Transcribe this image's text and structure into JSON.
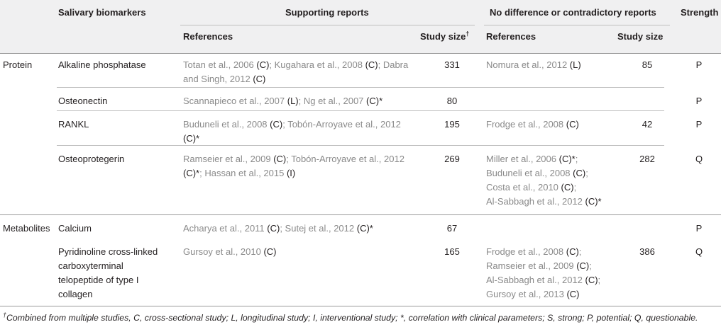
{
  "headers": {
    "biomarkers": "Salivary biomarkers",
    "supporting": "Supporting reports",
    "contradictory": "No difference or contradictory reports",
    "strength": "Strength",
    "references": "References",
    "study_size": "Study size",
    "dagger": "†"
  },
  "rows": [
    {
      "category": "Protein",
      "biomarker": [
        "Alkaline phosphatase"
      ],
      "support_refs": [
        [
          [
            "Totan et al., 2006 ",
            "r"
          ],
          [
            "(C)",
            "c"
          ],
          [
            "; Kugahara et al., 2008 ",
            "r"
          ],
          [
            "(C)",
            "c"
          ],
          [
            "; Dabra",
            "r"
          ]
        ],
        [
          [
            "and Singh, 2012 ",
            "r"
          ],
          [
            "(C)",
            "c"
          ]
        ]
      ],
      "support_size": "331",
      "contra_refs": [
        [
          [
            "Nomura et al., 2012 ",
            "r"
          ],
          [
            "(L)",
            "c"
          ]
        ]
      ],
      "contra_size": "85",
      "strength": "P"
    },
    {
      "category": "",
      "biomarker": [
        "Osteonectin"
      ],
      "support_refs": [
        [
          [
            "Scannapieco et al., 2007 ",
            "r"
          ],
          [
            "(L)",
            "c"
          ],
          [
            "; Ng et al., 2007 ",
            "r"
          ],
          [
            "(C)*",
            "c"
          ]
        ]
      ],
      "support_size": "80",
      "contra_refs": [],
      "contra_size": "",
      "strength": "P"
    },
    {
      "category": "",
      "biomarker": [
        "RANKL"
      ],
      "support_refs": [
        [
          [
            "Buduneli et al., 2008 ",
            "r"
          ],
          [
            "(C)",
            "c"
          ],
          [
            "; Tobón-Arroyave et al., 2012",
            "r"
          ]
        ],
        [
          [
            "(C)*",
            "c"
          ]
        ]
      ],
      "support_size": "195",
      "contra_refs": [
        [
          [
            "Frodge et al., 2008 ",
            "r"
          ],
          [
            "(C)",
            "c"
          ]
        ]
      ],
      "contra_size": "42",
      "strength": "P"
    },
    {
      "category": "",
      "biomarker": [
        "Osteoprotegerin"
      ],
      "support_refs": [
        [
          [
            "Ramseier et al., 2009 ",
            "r"
          ],
          [
            "(C)",
            "c"
          ],
          [
            "; Tobón-Arroyave et al., 2012",
            "r"
          ]
        ],
        [
          [
            "(C)*",
            "c"
          ],
          [
            "; Hassan et al., 2015 ",
            "r"
          ],
          [
            "(I)",
            "c"
          ]
        ]
      ],
      "support_size": "269",
      "contra_refs": [
        [
          [
            "Miller et al., 2006 ",
            "r"
          ],
          [
            "(C)*",
            "c"
          ],
          [
            ";",
            "r"
          ]
        ],
        [
          [
            "Buduneli et al., 2008 ",
            "r"
          ],
          [
            "(C)",
            "c"
          ],
          [
            ";",
            "r"
          ]
        ],
        [
          [
            "Costa et al., 2010 ",
            "r"
          ],
          [
            "(C)",
            "c"
          ],
          [
            ";",
            "r"
          ]
        ],
        [
          [
            "Al-Sabbagh et al., 2012 ",
            "r"
          ],
          [
            "(C)*",
            "c"
          ]
        ]
      ],
      "contra_size": "282",
      "strength": "Q"
    },
    {
      "category": "Metabolites",
      "biomarker": [
        "Calcium"
      ],
      "support_refs": [
        [
          [
            "Acharya et al., 2011 ",
            "r"
          ],
          [
            "(C)",
            "c"
          ],
          [
            "; Sutej et al., 2012 ",
            "r"
          ],
          [
            "(C)*",
            "c"
          ]
        ]
      ],
      "support_size": "67",
      "contra_refs": [],
      "contra_size": "",
      "strength": "P"
    },
    {
      "category": "",
      "biomarker": [
        "Pyridinoline cross-linked",
        "carboxyterminal",
        "telopeptide of type I",
        "collagen"
      ],
      "support_refs": [
        [
          [
            "Gursoy et al., 2010 ",
            "r"
          ],
          [
            "(C)",
            "c"
          ]
        ]
      ],
      "support_size": "165",
      "contra_refs": [
        [
          [
            "Frodge et al., 2008 ",
            "r"
          ],
          [
            "(C)",
            "c"
          ],
          [
            ";",
            "r"
          ]
        ],
        [
          [
            "Ramseier et al., 2009 ",
            "r"
          ],
          [
            "(C)",
            "c"
          ],
          [
            ";",
            "r"
          ]
        ],
        [
          [
            "Al-Sabbagh et al., 2012 ",
            "r"
          ],
          [
            "(C)",
            "c"
          ],
          [
            ";",
            "r"
          ]
        ],
        [
          [
            "Gursoy et al., 2013 ",
            "r"
          ],
          [
            "(C)",
            "c"
          ]
        ]
      ],
      "contra_size": "386",
      "strength": "Q"
    }
  ],
  "footnote": {
    "dagger": "†",
    "text": "Combined from multiple studies, C, cross-sectional study; L, longitudinal study; I, interventional study; *, correlation with clinical parameters; S, strong; P, potential; Q, questionable."
  }
}
